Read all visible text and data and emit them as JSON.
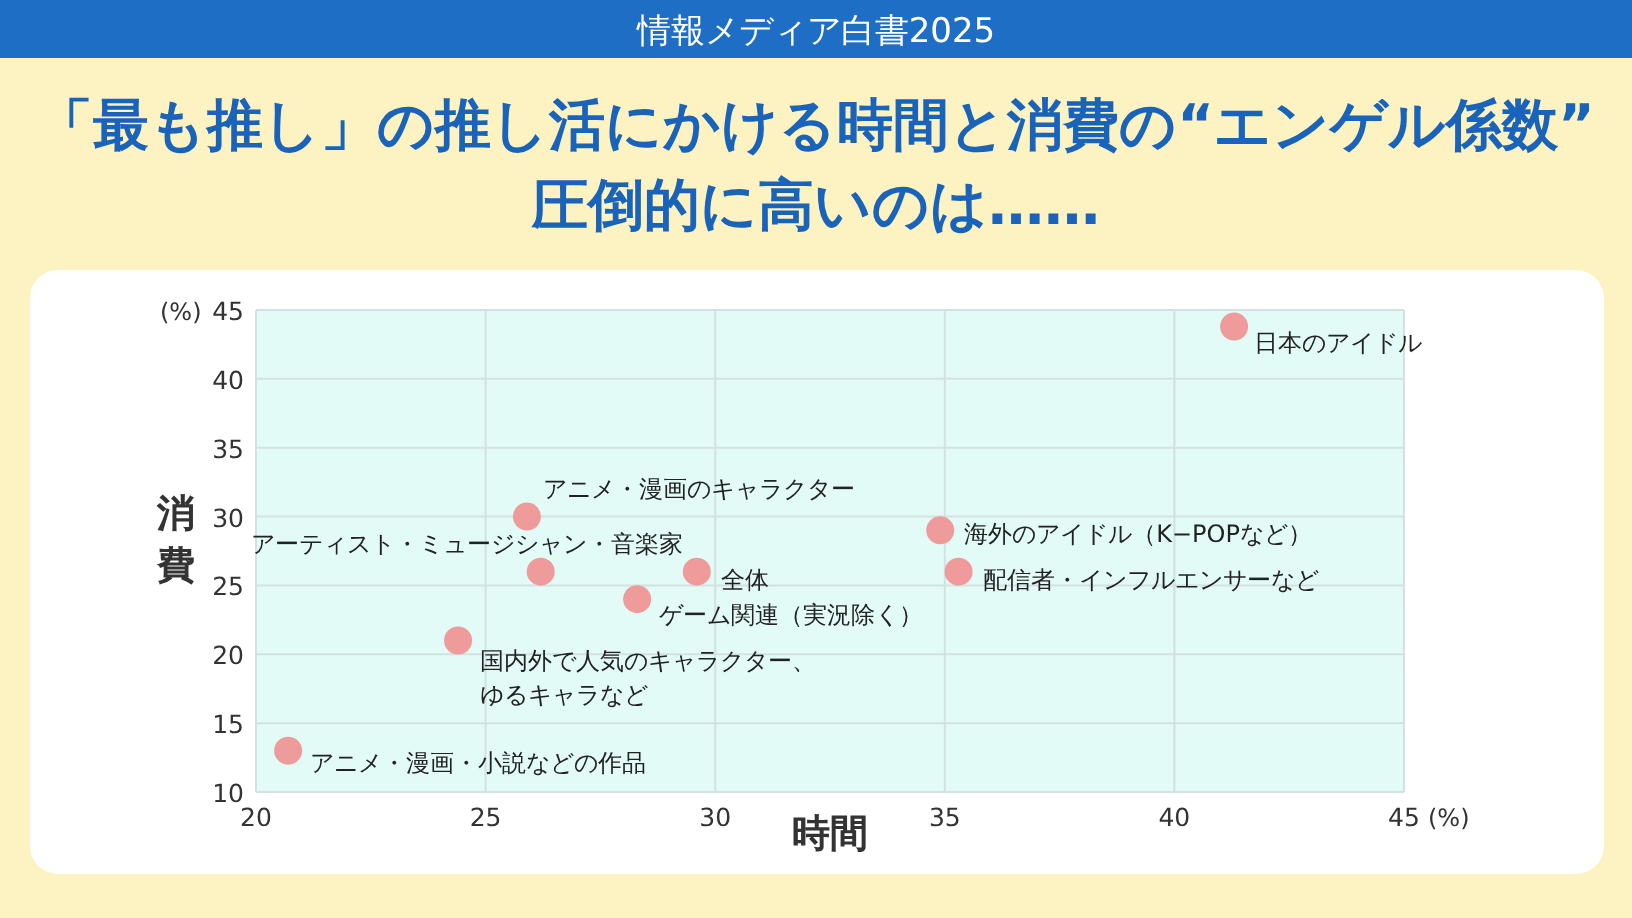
{
  "chart_data": {
    "type": "scatter",
    "title": "「最も推し」の推し活にかける時間と消費の“エンゲル係数”\n圧倒的に高いのは……",
    "xlabel": "時間",
    "ylabel": "消費",
    "x": [
      41.3,
      25.9,
      26.2,
      29.6,
      28.3,
      34.9,
      35.3,
      24.4,
      20.7
    ],
    "series": [
      {
        "color": "#f09b9b",
        "values": [
          43.8,
          30,
          26,
          26,
          24,
          29,
          26,
          21,
          13
        ]
      }
    ],
    "marker": "circle",
    "grid": true,
    "xlim": [
      20,
      45
    ],
    "xticks": [
      20,
      25,
      30,
      35,
      40,
      45
    ],
    "ylim": [
      10,
      45
    ],
    "yticks": [
      10,
      15,
      20,
      25,
      30,
      35,
      40,
      45
    ],
    "annotations": [
      "情報メディア白書2025",
      "(%)",
      "(%)",
      {
        "text": "日本のアイドル",
        "x": 41.3,
        "y": 43.8
      },
      {
        "text": "アニメ・漫画のキャラクター",
        "x": 25.9,
        "y": 30
      },
      {
        "text": "アーティスト・ミュージシャン・音楽家",
        "x": 26.2,
        "y": 26
      },
      {
        "text": "全体",
        "x": 29.6,
        "y": 26
      },
      {
        "text": "ゲーム関連（実況除く）",
        "x": 28.3,
        "y": 24
      },
      {
        "text": "海外のアイドル（K−POPなど）",
        "x": 34.9,
        "y": 29
      },
      {
        "text": "配信者・インフルエンサーなど",
        "x": 35.3,
        "y": 26
      },
      {
        "text": "国内外で人気のキャラクター、ゆるキャラなど",
        "x": 24.4,
        "y": 21
      },
      {
        "text": "アニメ・漫画・小説などの作品",
        "x": 20.7,
        "y": 13
      }
    ]
  }
}
